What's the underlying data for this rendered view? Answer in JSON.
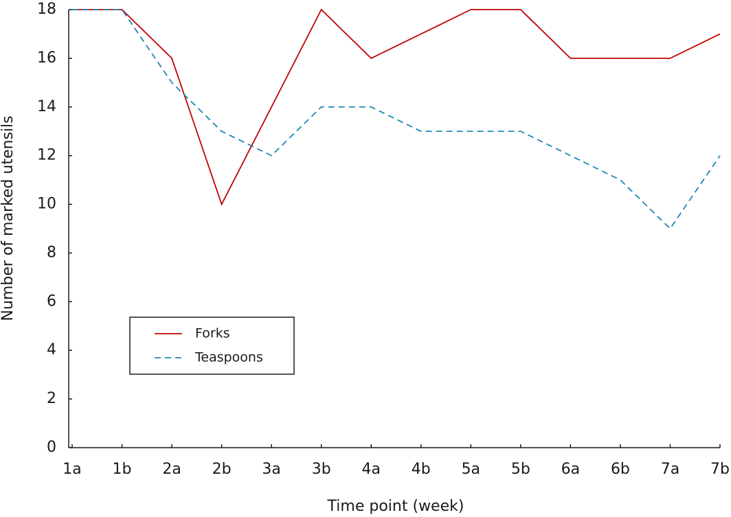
{
  "chart_data": {
    "type": "line",
    "xlabel": "Time point (week)",
    "ylabel": "Number of marked utensils",
    "categories": [
      "1a",
      "1b",
      "2a",
      "2b",
      "3a",
      "3b",
      "4a",
      "4b",
      "5a",
      "5b",
      "6a",
      "6b",
      "7a",
      "7b"
    ],
    "series": [
      {
        "name": "Forks",
        "color": "#c00000",
        "dash": "solid",
        "values": [
          18,
          18,
          16,
          10,
          14,
          18,
          16,
          17,
          18,
          18,
          16,
          16,
          16,
          17
        ]
      },
      {
        "name": "Teaspoons",
        "color": "#1a86b4",
        "dash": "dashed",
        "values": [
          18,
          18,
          15,
          13,
          12,
          14,
          14,
          13,
          13,
          13,
          12,
          11,
          9,
          12
        ]
      }
    ],
    "ylim": [
      0,
      18
    ],
    "yticks": [
      0,
      2,
      4,
      6,
      8,
      10,
      12,
      14,
      16,
      18
    ],
    "grid": false,
    "legend": "lower left"
  }
}
